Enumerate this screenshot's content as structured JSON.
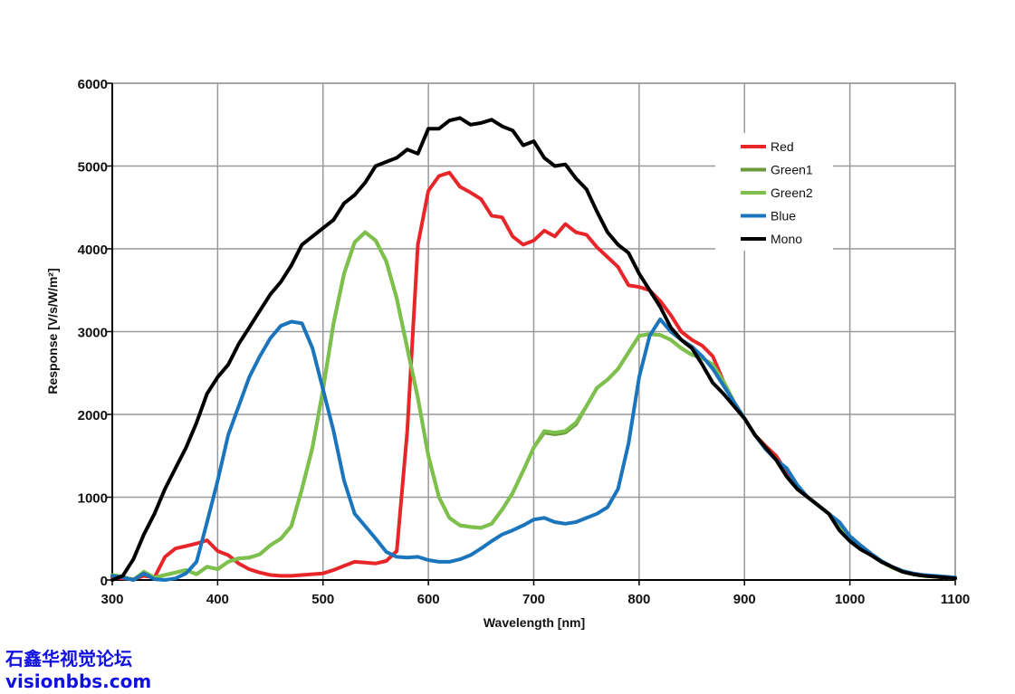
{
  "chart_data": {
    "type": "line",
    "title": "",
    "xlabel": "Wavelength [nm]",
    "ylabel": "Response [V/s/W/m²]",
    "xlim": [
      300,
      1100
    ],
    "ylim": [
      0,
      6000
    ],
    "xticks": [
      300,
      400,
      500,
      600,
      700,
      800,
      900,
      1000,
      1100
    ],
    "yticks": [
      0,
      1000,
      2000,
      3000,
      4000,
      5000,
      6000
    ],
    "grid": true,
    "legend_position": "top-right",
    "x": [
      300,
      310,
      320,
      330,
      340,
      350,
      360,
      370,
      380,
      390,
      400,
      410,
      420,
      430,
      440,
      450,
      460,
      470,
      480,
      490,
      500,
      510,
      520,
      530,
      540,
      550,
      560,
      570,
      580,
      590,
      600,
      610,
      620,
      630,
      640,
      650,
      660,
      670,
      680,
      690,
      700,
      710,
      720,
      730,
      740,
      750,
      760,
      770,
      780,
      790,
      800,
      810,
      820,
      830,
      840,
      850,
      860,
      870,
      880,
      890,
      900,
      910,
      920,
      930,
      940,
      950,
      960,
      970,
      980,
      990,
      1000,
      1010,
      1020,
      1030,
      1040,
      1050,
      1060,
      1070,
      1080,
      1090,
      1100
    ],
    "series": [
      {
        "name": "Red",
        "color": "#e8262a",
        "values": [
          30,
          20,
          10,
          50,
          30,
          280,
          380,
          410,
          440,
          480,
          350,
          300,
          200,
          130,
          90,
          60,
          50,
          50,
          60,
          70,
          80,
          120,
          170,
          220,
          210,
          200,
          230,
          350,
          1800,
          4050,
          4700,
          4880,
          4920,
          4750,
          4680,
          4600,
          4400,
          4380,
          4150,
          4050,
          4100,
          4220,
          4150,
          4300,
          4200,
          4170,
          4020,
          3900,
          3780,
          3560,
          3540,
          3500,
          3370,
          3200,
          3000,
          2900,
          2830,
          2700,
          2400,
          2150,
          1950,
          1750,
          1620,
          1500,
          1300,
          1120,
          1000,
          900,
          800,
          650,
          520,
          400,
          300,
          220,
          150,
          100,
          70,
          50,
          40,
          30,
          20
        ]
      },
      {
        "name": "Green1",
        "color": "#6b9a3a",
        "values": [
          60,
          40,
          0,
          100,
          30,
          60,
          90,
          120,
          70,
          160,
          130,
          220,
          260,
          270,
          310,
          420,
          500,
          650,
          1100,
          1600,
          2300,
          3100,
          3700,
          4080,
          4200,
          4100,
          3850,
          3400,
          2800,
          2200,
          1500,
          1000,
          750,
          660,
          640,
          630,
          680,
          850,
          1050,
          1320,
          1600,
          1780,
          1760,
          1780,
          1880,
          2100,
          2320,
          2420,
          2550,
          2750,
          2950,
          2970,
          2960,
          2900,
          2800,
          2720,
          2680,
          2600,
          2400,
          2150,
          1950,
          1750,
          1600,
          1450,
          1250,
          1100,
          1000,
          900,
          800,
          650,
          500,
          400,
          300,
          220,
          150,
          100,
          70,
          50,
          40,
          30,
          20
        ]
      },
      {
        "name": "Green2",
        "color": "#7dc04b",
        "values": [
          60,
          40,
          0,
          100,
          30,
          60,
          90,
          120,
          70,
          160,
          130,
          220,
          260,
          270,
          310,
          420,
          500,
          650,
          1100,
          1600,
          2300,
          3100,
          3700,
          4080,
          4200,
          4100,
          3850,
          3400,
          2800,
          2200,
          1500,
          1000,
          750,
          660,
          640,
          630,
          680,
          850,
          1050,
          1320,
          1600,
          1800,
          1780,
          1800,
          1900,
          2100,
          2320,
          2420,
          2550,
          2750,
          2950,
          2970,
          2960,
          2900,
          2800,
          2720,
          2680,
          2600,
          2400,
          2150,
          1950,
          1750,
          1600,
          1450,
          1250,
          1100,
          1000,
          900,
          800,
          650,
          500,
          400,
          300,
          220,
          150,
          100,
          70,
          50,
          40,
          30,
          20
        ]
      },
      {
        "name": "Blue",
        "color": "#1b75bc",
        "values": [
          50,
          30,
          0,
          80,
          10,
          0,
          20,
          80,
          220,
          700,
          1200,
          1750,
          2100,
          2450,
          2700,
          2920,
          3070,
          3120,
          3100,
          2800,
          2300,
          1800,
          1200,
          800,
          650,
          500,
          340,
          280,
          270,
          280,
          240,
          220,
          220,
          250,
          300,
          380,
          470,
          550,
          600,
          660,
          730,
          750,
          700,
          680,
          700,
          750,
          800,
          880,
          1100,
          1650,
          2450,
          2950,
          3150,
          3000,
          2900,
          2820,
          2700,
          2550,
          2350,
          2150,
          1950,
          1750,
          1580,
          1450,
          1350,
          1150,
          1000,
          900,
          800,
          700,
          530,
          420,
          320,
          230,
          160,
          110,
          80,
          60,
          50,
          40,
          30
        ]
      },
      {
        "name": "Mono",
        "color": "#000000",
        "values": [
          0,
          50,
          250,
          550,
          800,
          1100,
          1350,
          1600,
          1900,
          2250,
          2450,
          2600,
          2850,
          3050,
          3250,
          3450,
          3600,
          3800,
          4050,
          4150,
          4250,
          4350,
          4550,
          4650,
          4800,
          5000,
          5050,
          5100,
          5200,
          5150,
          5450,
          5450,
          5550,
          5580,
          5500,
          5520,
          5560,
          5480,
          5430,
          5250,
          5300,
          5100,
          5000,
          5020,
          4850,
          4720,
          4450,
          4200,
          4050,
          3950,
          3700,
          3500,
          3300,
          3050,
          2900,
          2800,
          2600,
          2380,
          2250,
          2100,
          1950,
          1750,
          1600,
          1450,
          1250,
          1100,
          1000,
          900,
          800,
          600,
          470,
          370,
          300,
          220,
          160,
          100,
          70,
          50,
          40,
          30,
          20
        ]
      }
    ]
  },
  "watermark": {
    "line1": "石鑫华视觉论坛",
    "line2": "visionbbs.com"
  }
}
